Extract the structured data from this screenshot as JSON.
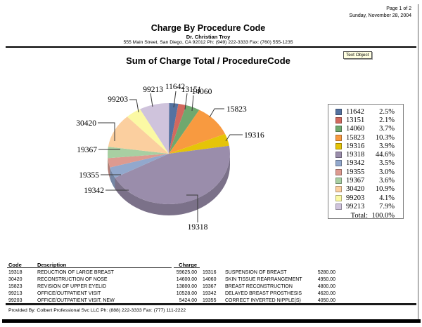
{
  "page": {
    "page_number": "Page 1 of 2",
    "date": "Sunday, November 28, 2004",
    "title": "Charge By Procedure Code",
    "doctor": "Dr. Christian Troy",
    "address": "555 Main Street, San Diego, CA 92012 Ph: (949) 222-3333 Fax: (760) 555-1235",
    "footer": "Provided By: Colbert Professional Svc LLC Ph: (888) 222-3333 Fax: (777) 111-2222",
    "text_object_label": "Text Object"
  },
  "chart_data": {
    "type": "pie",
    "title": "Sum of Charge Total / ProcedureCode",
    "legend_position": "right",
    "total_label": "Total:",
    "total_value": "100.0%",
    "slices": [
      {
        "code": "11642",
        "value": 2.5,
        "pct_label": "2.5%",
        "color": "#5572a0"
      },
      {
        "code": "13151",
        "value": 2.1,
        "pct_label": "2.1%",
        "color": "#d2695e"
      },
      {
        "code": "14060",
        "value": 3.7,
        "pct_label": "3.7%",
        "color": "#6fa86e"
      },
      {
        "code": "15823",
        "value": 10.3,
        "pct_label": "10.3%",
        "color": "#f89a40"
      },
      {
        "code": "19316",
        "value": 3.9,
        "pct_label": "3.9%",
        "color": "#e5c408"
      },
      {
        "code": "19318",
        "value": 44.6,
        "pct_label": "44.6%",
        "color": "#9a8dab"
      },
      {
        "code": "19342",
        "value": 3.5,
        "pct_label": "3.5%",
        "color": "#92a8cd"
      },
      {
        "code": "19355",
        "value": 3.0,
        "pct_label": "3.0%",
        "color": "#dd9a90"
      },
      {
        "code": "19367",
        "value": 3.6,
        "pct_label": "3.6%",
        "color": "#a8cfa2"
      },
      {
        "code": "30420",
        "value": 10.9,
        "pct_label": "10.9%",
        "color": "#fbcf9f"
      },
      {
        "code": "99203",
        "value": 4.1,
        "pct_label": "4.1%",
        "color": "#fbf9a4"
      },
      {
        "code": "99213",
        "value": 7.9,
        "pct_label": "7.9%",
        "color": "#cfc3dc"
      }
    ]
  },
  "table": {
    "headers": {
      "code": "Code",
      "description": "Description",
      "charge": "Charge"
    },
    "rows_left": [
      {
        "code": "19318",
        "description": "REDUCTION OF LARGE BREAST",
        "charge": "59625.00"
      },
      {
        "code": "30420",
        "description": "RECONSTRUCTION OF NOSE",
        "charge": "14600.00"
      },
      {
        "code": "15823",
        "description": "REVISION OF UPPER EYELID",
        "charge": "13800.00"
      },
      {
        "code": "99213",
        "description": "OFFICE/OUTPATIENT VISIT",
        "charge": "10528.00"
      },
      {
        "code": "99203",
        "description": "OFFICE/OUTPATIENT VISIT, NEW",
        "charge": "5424.00"
      }
    ],
    "rows_right": [
      {
        "code": "19316",
        "description": "SUSPENSION OF BREAST",
        "charge": "5280.00"
      },
      {
        "code": "14060",
        "description": "SKIN TISSUE REARRANGEMENT",
        "charge": "4950.00"
      },
      {
        "code": "19367",
        "description": "BREAST RECONSTRUCTION",
        "charge": "4800.00"
      },
      {
        "code": "19342",
        "description": "DELAYED BREAST PROSTHESIS",
        "charge": "4620.00"
      },
      {
        "code": "19355",
        "description": "CORRECT INVERTED NIPPLE(S)",
        "charge": "4050.00"
      }
    ]
  }
}
